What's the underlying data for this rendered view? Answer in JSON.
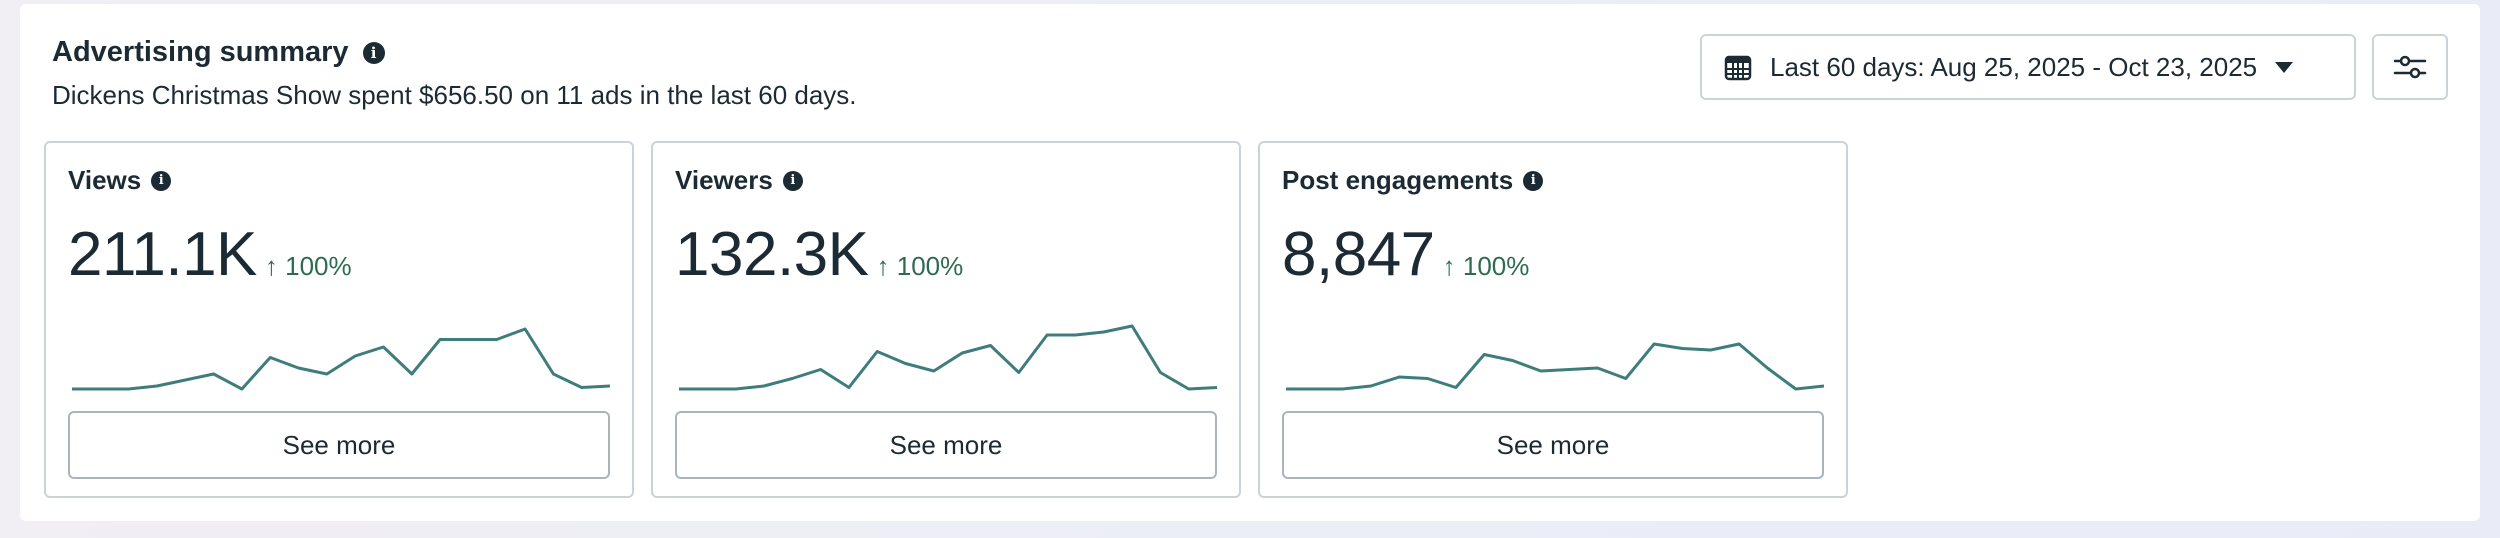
{
  "summary": {
    "title": "Advertising summary",
    "subtitle": "Dickens Christmas Show spent $656.50 on 11 ads in the last 60 days."
  },
  "controls": {
    "date_range_label": "Last 60 days: Aug 25, 2025 - Oct 23, 2025"
  },
  "colors": {
    "sparkline": "#3f7d7d",
    "positive_change": "#2e6b4f",
    "border": "#cbd2d9"
  },
  "cards": [
    {
      "title": "Views",
      "value": "211.1K",
      "change": "↑ 100%",
      "button_label": "See more",
      "sparkline": [
        0,
        0,
        0,
        2,
        6,
        10,
        0,
        21,
        14,
        10,
        22,
        28,
        10,
        33,
        33,
        33,
        40,
        10,
        1,
        2
      ]
    },
    {
      "title": "Viewers",
      "value": "132.3K",
      "change": "↑ 100%",
      "button_label": "See more",
      "sparkline": [
        0,
        0,
        0,
        2,
        7,
        13,
        1,
        25,
        17,
        12,
        24,
        29,
        11,
        36,
        36,
        38,
        42,
        11,
        0,
        1
      ]
    },
    {
      "title": "Post engagements",
      "value": "8,847",
      "change": "↑ 100%",
      "button_label": "See more",
      "sparkline": [
        0,
        0,
        0,
        2,
        8,
        7,
        1,
        23,
        19,
        12,
        13,
        14,
        7,
        30,
        27,
        26,
        30,
        14,
        0,
        2
      ]
    }
  ]
}
